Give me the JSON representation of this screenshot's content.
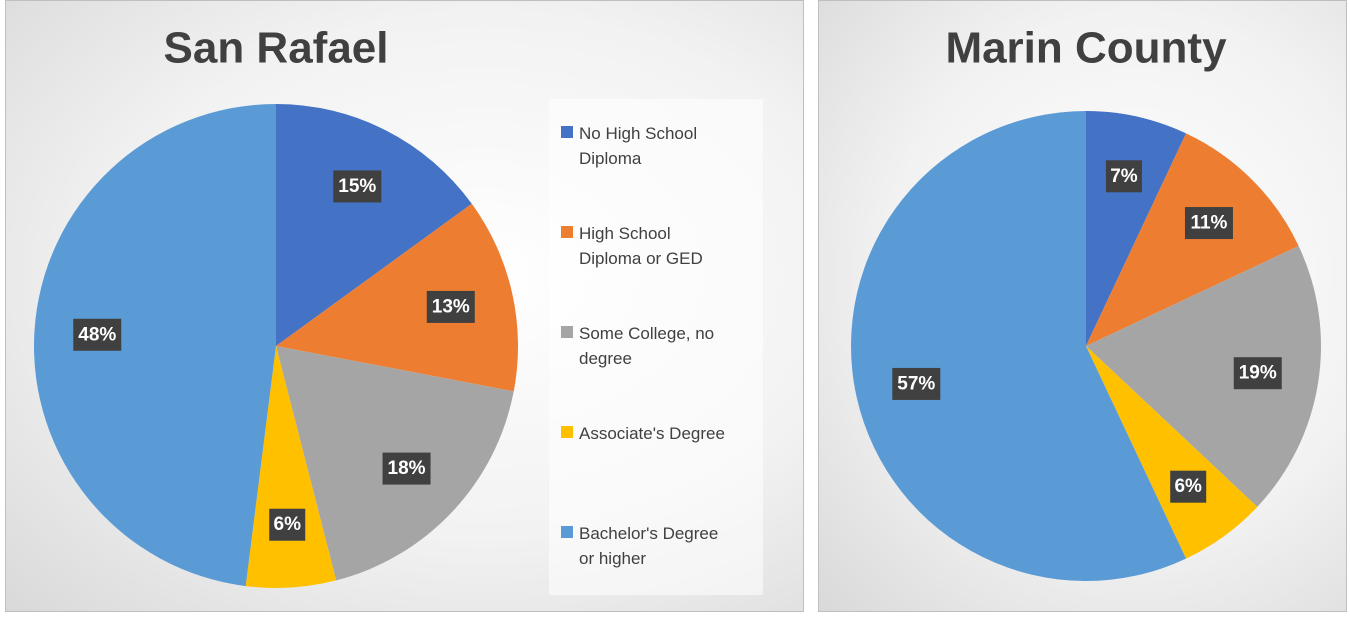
{
  "chart_data": [
    {
      "type": "pie",
      "title": "San Rafael",
      "categories": [
        "No High School Diploma",
        "High School Diploma or GED",
        "Some College, no degree",
        "Associate's Degree",
        "Bachelor's Degree or higher"
      ],
      "values": [
        15,
        13,
        18,
        6,
        48
      ],
      "value_labels": [
        "15%",
        "13%",
        "18%",
        "6%",
        "48%"
      ],
      "colors": [
        "#4472c4",
        "#ed7d31",
        "#a5a5a5",
        "#ffc000",
        "#5b9bd5"
      ],
      "legend": "right"
    },
    {
      "type": "pie",
      "title": "Marin County",
      "values": [
        7,
        11,
        19,
        6,
        57
      ],
      "value_labels": [
        "7%",
        "11%",
        "19%",
        "6%",
        "57%"
      ],
      "colors": [
        "#4472c4",
        "#ed7d31",
        "#a5a5a5",
        "#ffc000",
        "#5b9bd5"
      ]
    }
  ]
}
